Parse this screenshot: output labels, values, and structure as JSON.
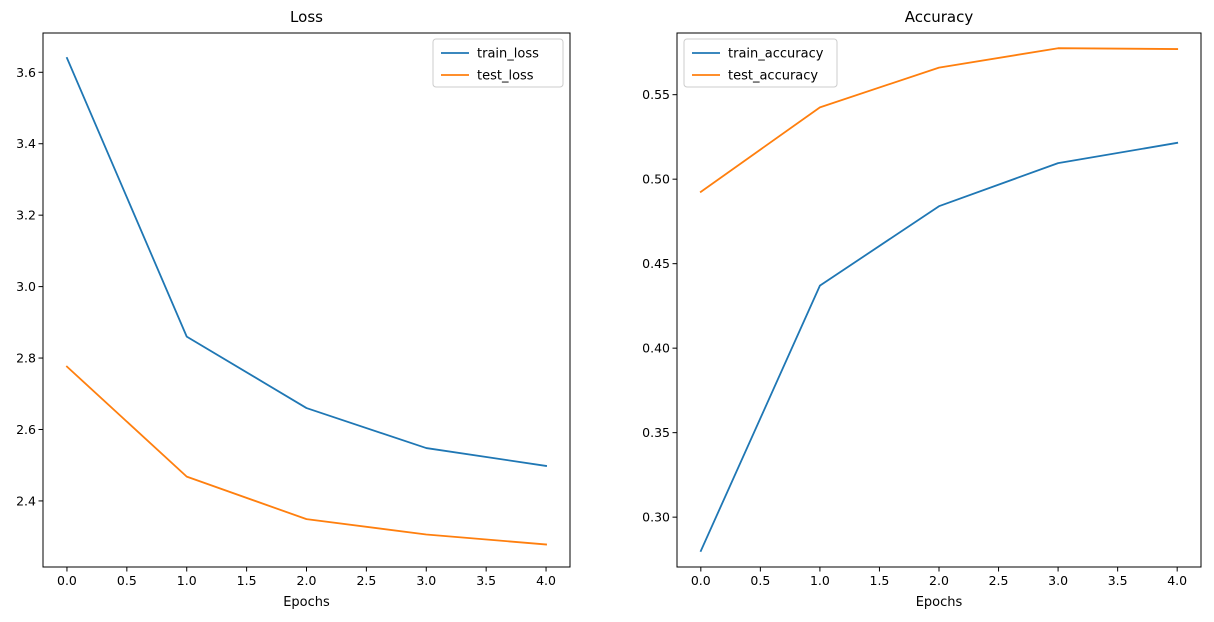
{
  "chart_data": [
    {
      "type": "line",
      "title": "Loss",
      "xlabel": "Epochs",
      "ylabel": "",
      "x": [
        0,
        1,
        2,
        3,
        4
      ],
      "xlim": [
        -0.2,
        4.2
      ],
      "ylim": [
        2.215,
        3.71
      ],
      "xticks": [
        0.0,
        0.5,
        1.0,
        1.5,
        2.0,
        2.5,
        3.0,
        3.5,
        4.0
      ],
      "xtick_labels": [
        "0.0",
        "0.5",
        "1.0",
        "1.5",
        "2.0",
        "2.5",
        "3.0",
        "3.5",
        "4.0"
      ],
      "yticks": [
        2.4,
        2.6,
        2.8,
        3.0,
        3.2,
        3.4,
        3.6
      ],
      "ytick_labels": [
        "2.4",
        "2.6",
        "2.8",
        "3.0",
        "3.2",
        "3.4",
        "3.6"
      ],
      "grid": false,
      "legend_position": "top-right",
      "series": [
        {
          "name": "train_loss",
          "color": "#1f77b4",
          "values": [
            3.64,
            2.86,
            2.66,
            2.548,
            2.498
          ]
        },
        {
          "name": "test_loss",
          "color": "#ff7f0e",
          "values": [
            2.776,
            2.468,
            2.349,
            2.306,
            2.278
          ]
        }
      ]
    },
    {
      "type": "line",
      "title": "Accuracy",
      "xlabel": "Epochs",
      "ylabel": "",
      "x": [
        0,
        1,
        2,
        3,
        4
      ],
      "xlim": [
        -0.2,
        4.2
      ],
      "ylim": [
        0.2705,
        0.5865
      ],
      "xticks": [
        0.0,
        0.5,
        1.0,
        1.5,
        2.0,
        2.5,
        3.0,
        3.5,
        4.0
      ],
      "xtick_labels": [
        "0.0",
        "0.5",
        "1.0",
        "1.5",
        "2.0",
        "2.5",
        "3.0",
        "3.5",
        "4.0"
      ],
      "yticks": [
        0.3,
        0.35,
        0.4,
        0.45,
        0.5,
        0.55
      ],
      "ytick_labels": [
        "0.30",
        "0.35",
        "0.40",
        "0.45",
        "0.50",
        "0.55"
      ],
      "grid": false,
      "legend_position": "top-left",
      "series": [
        {
          "name": "train_accuracy",
          "color": "#1f77b4",
          "values": [
            0.28,
            0.437,
            0.484,
            0.5095,
            0.5215
          ]
        },
        {
          "name": "test_accuracy",
          "color": "#ff7f0e",
          "values": [
            0.4925,
            0.5425,
            0.566,
            0.5775,
            0.577
          ]
        }
      ]
    }
  ]
}
